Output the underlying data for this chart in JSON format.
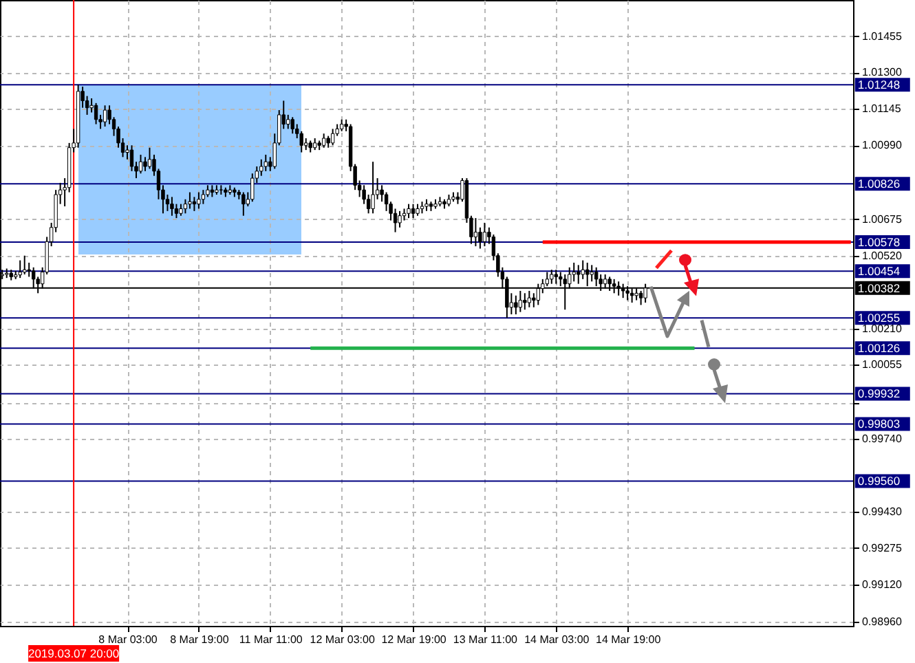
{
  "chart_data": {
    "type": "candlestick",
    "categories": [
      null,
      null,
      null,
      null,
      null,
      null,
      null,
      null,
      null,
      null,
      null,
      null,
      null,
      null,
      null,
      null,
      "2019.03.07 20:00",
      null,
      null,
      null,
      null,
      null,
      null,
      null,
      null,
      null,
      null,
      null,
      "8 Mar 03:00",
      null,
      null,
      null,
      null,
      null,
      null,
      null,
      null,
      null,
      null,
      null,
      null,
      null,
      null,
      null,
      "8 Mar 19:00",
      null,
      null,
      null,
      null,
      null,
      null,
      null,
      null,
      null,
      null,
      null,
      null,
      null,
      null,
      null,
      "11 Mar 11:00",
      null,
      null,
      null,
      null,
      null,
      null,
      null,
      null,
      null,
      null,
      null,
      null,
      null,
      null,
      null,
      "12 Mar 03:00",
      null,
      null,
      null,
      null,
      null,
      null,
      null,
      null,
      null,
      null,
      null,
      null,
      null,
      null,
      null,
      "12 Mar 19:00",
      null,
      null,
      null,
      null,
      null,
      null,
      null,
      null,
      null,
      null,
      null,
      null,
      null,
      null,
      null,
      "13 Mar 11:00",
      null,
      null,
      null,
      null,
      null,
      null,
      null,
      null,
      null,
      null,
      null,
      null,
      null,
      null,
      null,
      "14 Mar 03:00",
      null,
      null,
      null,
      null,
      null,
      null,
      null,
      null,
      null,
      null,
      null,
      null,
      null,
      null,
      null,
      "14 Mar 19:00",
      null,
      null,
      null,
      null,
      null,
      null,
      null,
      null,
      null,
      null,
      null,
      null,
      null,
      null,
      null,
      null,
      null,
      null,
      null,
      null,
      null,
      null,
      null,
      null,
      null,
      null,
      null,
      null,
      null,
      null,
      null,
      null,
      null,
      null,
      null,
      null,
      null,
      null,
      null,
      null,
      null,
      null,
      null,
      null,
      null,
      null,
      null,
      null,
      null,
      null
    ],
    "ohlc": [
      [
        1.00435,
        1.0046,
        1.0042,
        1.0044
      ],
      [
        1.0044,
        1.00465,
        1.00425,
        1.00445
      ],
      [
        1.00445,
        1.0046,
        1.00415,
        1.0043
      ],
      [
        1.0043,
        1.00455,
        1.0042,
        1.00438
      ],
      [
        1.00438,
        1.005,
        1.00425,
        1.0045
      ],
      [
        1.0045,
        1.0052,
        1.0044,
        1.0046
      ],
      [
        1.0046,
        1.0049,
        1.0043,
        1.00455
      ],
      [
        1.00455,
        1.0047,
        1.0038,
        1.0042
      ],
      [
        1.0042,
        1.0043,
        1.0036,
        1.004
      ],
      [
        1.004,
        1.0047,
        1.0038,
        1.0045
      ],
      [
        1.0045,
        1.006,
        1.0044,
        1.0058
      ],
      [
        1.0058,
        1.0066,
        1.0056,
        1.0064
      ],
      [
        1.0064,
        1.008,
        1.0062,
        1.0078
      ],
      [
        1.0078,
        1.0083,
        1.0074,
        1.008
      ],
      [
        1.008,
        1.0085,
        1.0073,
        1.0081
      ],
      [
        1.0081,
        1.01,
        1.0079,
        1.0098
      ],
      [
        1.0098,
        1.0106,
        1.0096,
        1.01
      ],
      [
        1.01,
        1.01248,
        1.0098,
        1.0122
      ],
      [
        1.0122,
        1.0124,
        1.0115,
        1.0118
      ],
      [
        1.0118,
        1.012,
        1.0112,
        1.0115
      ],
      [
        1.0115,
        1.0119,
        1.0113,
        1.0116
      ],
      [
        1.0116,
        1.0117,
        1.0108,
        1.011
      ],
      [
        1.011,
        1.0112,
        1.0106,
        1.0109
      ],
      [
        1.0109,
        1.0116,
        1.0107,
        1.0114
      ],
      [
        1.0114,
        1.0116,
        1.0108,
        1.011
      ],
      [
        1.011,
        1.0111,
        1.0103,
        1.0106
      ],
      [
        1.0106,
        1.0107,
        1.0098,
        1.01
      ],
      [
        1.01,
        1.0102,
        1.0094,
        1.0096
      ],
      [
        1.0096,
        1.0099,
        1.0093,
        1.0097
      ],
      [
        1.0097,
        1.0099,
        1.0088,
        1.009
      ],
      [
        1.009,
        1.0092,
        1.0085,
        1.0088
      ],
      [
        1.0088,
        1.0095,
        1.0087,
        1.0092
      ],
      [
        1.0092,
        1.0094,
        1.0088,
        1.009
      ],
      [
        1.009,
        1.0098,
        1.0089,
        1.0093
      ],
      [
        1.0093,
        1.0095,
        1.0086,
        1.0088
      ],
      [
        1.0088,
        1.0089,
        1.0076,
        1.008
      ],
      [
        1.008,
        1.0082,
        1.007,
        1.0076
      ],
      [
        1.0076,
        1.0078,
        1.0071,
        1.0074
      ],
      [
        1.0074,
        1.0077,
        1.0069,
        1.0072
      ],
      [
        1.0072,
        1.0074,
        1.0068,
        1.007
      ],
      [
        1.007,
        1.0074,
        1.0069,
        1.0072
      ],
      [
        1.0072,
        1.0076,
        1.007,
        1.0074
      ],
      [
        1.0074,
        1.0079,
        1.0072,
        1.0075
      ],
      [
        1.0075,
        1.0077,
        1.0071,
        1.0074
      ],
      [
        1.0074,
        1.0079,
        1.0072,
        1.0076
      ],
      [
        1.0076,
        1.008,
        1.0074,
        1.0078
      ],
      [
        1.0078,
        1.0082,
        1.0077,
        1.008
      ],
      [
        1.008,
        1.0082,
        1.0077,
        1.0079
      ],
      [
        1.0079,
        1.0082,
        1.0078,
        1.008
      ],
      [
        1.008,
        1.0082,
        1.0078,
        1.008
      ],
      [
        1.008,
        1.0081,
        1.0077,
        1.0079
      ],
      [
        1.0079,
        1.0082,
        1.0078,
        1.008
      ],
      [
        1.008,
        1.0081,
        1.0077,
        1.0079
      ],
      [
        1.0079,
        1.008,
        1.0076,
        1.0078
      ],
      [
        1.0078,
        1.0079,
        1.0069,
        1.0074
      ],
      [
        1.0074,
        1.0079,
        1.0073,
        1.0076
      ],
      [
        1.0076,
        1.0087,
        1.0075,
        1.0085
      ],
      [
        1.0085,
        1.009,
        1.0083,
        1.0088
      ],
      [
        1.0088,
        1.0093,
        1.0086,
        1.009
      ],
      [
        1.009,
        1.0095,
        1.0088,
        1.0092
      ],
      [
        1.0092,
        1.0094,
        1.0088,
        1.009
      ],
      [
        1.009,
        1.0104,
        1.0089,
        1.01
      ],
      [
        1.01,
        1.0114,
        1.0099,
        1.0112
      ],
      [
        1.0112,
        1.0118,
        1.0106,
        1.0108
      ],
      [
        1.0108,
        1.0112,
        1.0106,
        1.011
      ],
      [
        1.011,
        1.0111,
        1.0104,
        1.0106
      ],
      [
        1.0106,
        1.0108,
        1.0102,
        1.0104
      ],
      [
        1.0104,
        1.0105,
        1.0096,
        1.0099
      ],
      [
        1.0099,
        1.0102,
        1.0097,
        1.01
      ],
      [
        1.01,
        1.0101,
        1.0096,
        1.0098
      ],
      [
        1.0098,
        1.0102,
        1.0097,
        1.01
      ],
      [
        1.01,
        1.0101,
        1.0097,
        1.0099
      ],
      [
        1.0099,
        1.0104,
        1.0098,
        1.0102
      ],
      [
        1.0102,
        1.0103,
        1.0098,
        1.01
      ],
      [
        1.01,
        1.0106,
        1.0099,
        1.0104
      ],
      [
        1.0104,
        1.0108,
        1.0103,
        1.0106
      ],
      [
        1.0106,
        1.011,
        1.0105,
        1.0108
      ],
      [
        1.0108,
        1.011,
        1.0105,
        1.0107
      ],
      [
        1.0107,
        1.0108,
        1.0088,
        1.009
      ],
      [
        1.009,
        1.0091,
        1.008,
        1.0082
      ],
      [
        1.0082,
        1.0084,
        1.0077,
        1.008
      ],
      [
        1.008,
        1.0082,
        1.0074,
        1.0076
      ],
      [
        1.0076,
        1.0078,
        1.007,
        1.0072
      ],
      [
        1.0072,
        1.0092,
        1.007,
        1.0078
      ],
      [
        1.0078,
        1.0085,
        1.0076,
        1.008
      ],
      [
        1.008,
        1.0082,
        1.0075,
        1.0078
      ],
      [
        1.0078,
        1.0079,
        1.0071,
        1.0074
      ],
      [
        1.0074,
        1.0075,
        1.0067,
        1.007
      ],
      [
        1.007,
        1.0072,
        1.0062,
        1.0066
      ],
      [
        1.0066,
        1.0071,
        1.0064,
        1.0069
      ],
      [
        1.0069,
        1.0072,
        1.0067,
        1.007
      ],
      [
        1.007,
        1.0074,
        1.0068,
        1.0072
      ],
      [
        1.0072,
        1.0074,
        1.0068,
        1.007
      ],
      [
        1.007,
        1.0074,
        1.0069,
        1.0072
      ],
      [
        1.0072,
        1.0075,
        1.007,
        1.0073
      ],
      [
        1.0073,
        1.0076,
        1.0071,
        1.0074
      ],
      [
        1.0074,
        1.0075,
        1.0071,
        1.0073
      ],
      [
        1.0073,
        1.0076,
        1.0072,
        1.0074
      ],
      [
        1.0074,
        1.0077,
        1.0073,
        1.0075
      ],
      [
        1.0075,
        1.0076,
        1.0072,
        1.0074
      ],
      [
        1.0074,
        1.0078,
        1.0073,
        1.0076
      ],
      [
        1.0076,
        1.0079,
        1.0075,
        1.0077
      ],
      [
        1.0077,
        1.0079,
        1.0074,
        1.0076
      ],
      [
        1.0076,
        1.0085,
        1.0075,
        1.0084
      ],
      [
        1.0084,
        1.0085,
        1.0066,
        1.0068
      ],
      [
        1.0068,
        1.0069,
        1.0057,
        1.006
      ],
      [
        1.006,
        1.0068,
        1.0056,
        1.0062
      ],
      [
        1.0062,
        1.0064,
        1.0055,
        1.0058
      ],
      [
        1.0058,
        1.0066,
        1.0056,
        1.0062
      ],
      [
        1.0062,
        1.0064,
        1.0057,
        1.006
      ],
      [
        1.006,
        1.0061,
        1.005,
        1.0052
      ],
      [
        1.0052,
        1.0053,
        1.0043,
        1.0045
      ],
      [
        1.0045,
        1.0047,
        1.0038,
        1.0042
      ],
      [
        1.0042,
        1.0043,
        1.00255,
        1.003
      ],
      [
        1.003,
        1.0036,
        1.0027,
        1.0032
      ],
      [
        1.0032,
        1.0035,
        1.0027,
        1.003
      ],
      [
        1.003,
        1.0037,
        1.0028,
        1.0033
      ],
      [
        1.0033,
        1.0036,
        1.0029,
        1.0032
      ],
      [
        1.0032,
        1.0037,
        1.003,
        1.0034
      ],
      [
        1.0034,
        1.0036,
        1.003,
        1.0033
      ],
      [
        1.0033,
        1.004,
        1.0031,
        1.0038
      ],
      [
        1.0038,
        1.0042,
        1.0036,
        1.004
      ],
      [
        1.004,
        1.0045,
        1.0039,
        1.0042
      ],
      [
        1.0042,
        1.0046,
        1.004,
        1.0044
      ],
      [
        1.0044,
        1.0046,
        1.004,
        1.0043
      ],
      [
        1.0043,
        1.0045,
        1.0039,
        1.0042
      ],
      [
        1.0042,
        1.0044,
        1.0029,
        1.004
      ],
      [
        1.004,
        1.0047,
        1.0038,
        1.0044
      ],
      [
        1.0044,
        1.0049,
        1.0041,
        1.0045
      ],
      [
        1.0045,
        1.0048,
        1.004,
        1.0044
      ],
      [
        1.0044,
        1.005,
        1.0042,
        1.0046
      ],
      [
        1.0046,
        1.0049,
        1.0039,
        1.0044
      ],
      [
        1.0044,
        1.0048,
        1.0041,
        1.0045
      ],
      [
        1.0045,
        1.0047,
        1.0039,
        1.0042
      ],
      [
        1.0042,
        1.0044,
        1.0037,
        1.004
      ],
      [
        1.004,
        1.0044,
        1.0038,
        1.0042
      ],
      [
        1.0042,
        1.0043,
        1.0037,
        1.004
      ],
      [
        1.004,
        1.0042,
        1.0036,
        1.0039
      ],
      [
        1.0039,
        1.0041,
        1.0035,
        1.0038
      ],
      [
        1.0038,
        1.004,
        1.0034,
        1.0037
      ],
      [
        1.0037,
        1.0039,
        1.0033,
        1.0036
      ],
      [
        1.0036,
        1.0038,
        1.0032,
        1.0035
      ],
      [
        1.0035,
        1.0038,
        1.0033,
        1.0036
      ],
      [
        1.0036,
        1.0037,
        1.0031,
        1.0034
      ],
      [
        1.0034,
        1.004,
        1.0032,
        1.00382
      ],
      null,
      null,
      null,
      null,
      null,
      null,
      null,
      null,
      null,
      null,
      null,
      null,
      null,
      null,
      null,
      null,
      null,
      null,
      null,
      null,
      null,
      null,
      null,
      null,
      null,
      null,
      null,
      null,
      null,
      null,
      null,
      null,
      null,
      null,
      null,
      null,
      null,
      null,
      null,
      null,
      null,
      null,
      null,
      null,
      null,
      null
    ],
    "ylim": [
      0.98943,
      1.01609
    ],
    "yticks": [
      {
        "value": 0.9896,
        "label": "0.98960"
      },
      {
        "value": 0.9912,
        "label": "0.99120"
      },
      0.99275,
      {
        "value": 0.9943,
        "label": "0.99430"
      },
      {
        "value": 0.9974,
        "label": "0.99740"
      },
      {
        "value": 0.99895,
        "label": null
      },
      1.00055,
      {
        "value": 1.0021,
        "label": "1.00210"
      },
      {
        "value": 1.0052,
        "label": "1.00520"
      },
      1.00675,
      {
        "value": 1.0099,
        "label": "1.00990"
      },
      1.01145,
      {
        "value": 1.013,
        "label": "1.01300"
      },
      1.01455
    ],
    "grid": true,
    "series": [
      {
        "type": "line",
        "color": "#ff0000",
        "values": [
          null,
          null,
          null,
          null,
          null,
          null,
          null,
          null,
          null,
          null,
          null,
          null,
          null,
          null,
          null,
          null,
          null,
          null,
          null,
          null,
          null,
          null,
          null,
          null,
          null,
          null,
          null,
          null,
          null,
          null,
          null,
          null,
          null,
          null,
          null,
          null,
          null,
          null,
          null,
          null,
          null,
          null,
          null,
          null,
          null,
          null,
          null,
          null,
          null,
          null,
          null,
          null,
          null,
          null,
          null,
          null,
          null,
          null,
          null,
          null,
          null,
          null,
          null,
          null,
          null,
          null,
          null,
          null,
          null,
          null,
          null,
          null,
          null,
          null,
          null,
          null,
          null,
          null,
          null,
          null,
          null,
          null,
          null,
          null,
          null,
          null,
          null,
          null,
          null,
          null,
          null,
          null,
          null,
          null,
          null,
          null,
          null,
          null,
          null,
          null,
          null,
          null,
          null,
          null,
          null,
          null,
          null,
          null,
          null,
          null,
          null,
          null,
          null,
          null,
          null,
          null,
          null,
          null,
          null,
          null,
          null,
          1.00578,
          1.00578,
          1.00578,
          1.00578,
          1.00578,
          1.00578,
          1.00578,
          1.00578,
          1.00578,
          1.00578,
          1.00578,
          1.00578,
          1.00578,
          1.00578,
          1.00578,
          1.00578,
          1.00578,
          1.00578,
          1.00578,
          1.00578,
          1.00578,
          1.00578,
          1.00578,
          1.00578,
          1.00578,
          1.00578,
          1.00578,
          1.00578,
          1.00578,
          1.00578,
          1.00578,
          1.00578,
          1.00578,
          1.00578,
          1.00578,
          1.00578,
          1.00578,
          1.00578,
          1.00578,
          1.00578,
          1.00578,
          1.00578,
          1.00578,
          1.00578,
          1.00578,
          1.00578,
          1.00578,
          1.00578,
          1.00578,
          1.00578,
          1.00578,
          1.00578,
          1.00578,
          1.00578,
          1.00578,
          1.00578,
          1.00578,
          1.00578,
          1.00578,
          1.00578,
          1.00578,
          1.00578,
          1.00578,
          1.00578,
          1.00578,
          1.00578,
          1.00578,
          1.00578,
          1.00578,
          1.00578
        ]
      },
      {
        "type": "line",
        "color": "#22b14c",
        "values": [
          null,
          null,
          null,
          null,
          null,
          null,
          null,
          null,
          null,
          null,
          null,
          null,
          null,
          null,
          null,
          null,
          null,
          null,
          null,
          null,
          null,
          null,
          null,
          null,
          null,
          null,
          null,
          null,
          null,
          null,
          null,
          null,
          null,
          null,
          null,
          null,
          null,
          null,
          null,
          null,
          null,
          null,
          null,
          null,
          null,
          null,
          null,
          null,
          null,
          null,
          null,
          null,
          null,
          null,
          null,
          null,
          null,
          null,
          null,
          null,
          null,
          null,
          null,
          null,
          null,
          null,
          null,
          null,
          null,
          1.00126,
          1.00126,
          1.00126,
          1.00126,
          1.00126,
          1.00126,
          1.00126,
          1.00126,
          1.00126,
          1.00126,
          1.00126,
          1.00126,
          1.00126,
          1.00126,
          1.00126,
          1.00126,
          1.00126,
          1.00126,
          1.00126,
          1.00126,
          1.00126,
          1.00126,
          1.00126,
          1.00126,
          1.00126,
          1.00126,
          1.00126,
          1.00126,
          1.00126,
          1.00126,
          1.00126,
          1.00126,
          1.00126,
          1.00126,
          1.00126,
          1.00126,
          1.00126,
          1.00126,
          1.00126,
          1.00126,
          1.00126,
          1.00126,
          1.00126,
          1.00126,
          1.00126,
          1.00126,
          1.00126,
          1.00126,
          1.00126,
          1.00126,
          1.00126,
          1.00126,
          1.00126,
          1.00126,
          1.00126,
          1.00126,
          1.00126,
          1.00126,
          1.00126,
          1.00126,
          1.00126,
          1.00126,
          1.00126,
          1.00126,
          1.00126,
          1.00126,
          1.00126,
          1.00126,
          1.00126,
          1.00126,
          1.00126,
          1.00126,
          1.00126,
          1.00126,
          1.00126,
          1.00126,
          1.00126,
          1.00126,
          1.00126,
          1.00126,
          1.00126,
          1.00126,
          1.00126,
          1.00126,
          1.00126,
          1.00126,
          1.00126,
          null,
          null,
          null,
          null,
          null,
          null,
          null,
          null,
          null,
          null,
          null,
          null,
          null,
          null,
          null,
          null,
          null,
          null,
          null,
          null,
          null,
          null,
          null,
          null,
          null,
          null,
          null,
          null,
          null,
          null,
          null,
          null,
          null,
          null,
          null
        ]
      }
    ],
    "ref_lines": [
      {
        "axis": "y",
        "value": 1.01248,
        "label": "1.01248",
        "color": "#000080"
      },
      {
        "axis": "y",
        "value": 1.00826,
        "label": "1.00826",
        "color": "#000080"
      },
      {
        "axis": "y",
        "value": 1.00578,
        "label": "1.00578",
        "color": "#000080"
      },
      {
        "axis": "y",
        "value": 1.00454,
        "label": "1.00454",
        "color": "#000080"
      },
      {
        "axis": "y",
        "value": 1.00382,
        "label": "1.00382",
        "color": "#000000"
      },
      {
        "axis": "y",
        "value": 1.00255,
        "label": "1.00255",
        "color": "#000080"
      },
      {
        "axis": "y",
        "value": 1.00126,
        "label": "1.00126",
        "color": "#000080"
      },
      {
        "axis": "y",
        "value": 0.99932,
        "label": "0.99932",
        "color": "#000080"
      },
      {
        "axis": "y",
        "value": 0.99803,
        "label": "0.99803",
        "color": "#000080"
      },
      {
        "axis": "y",
        "value": 0.9956,
        "label": "0.99560",
        "color": "#000080"
      },
      {
        "axis": "x",
        "value": "2019.03.07 20:00",
        "color": "#ff0000"
      }
    ]
  }
}
